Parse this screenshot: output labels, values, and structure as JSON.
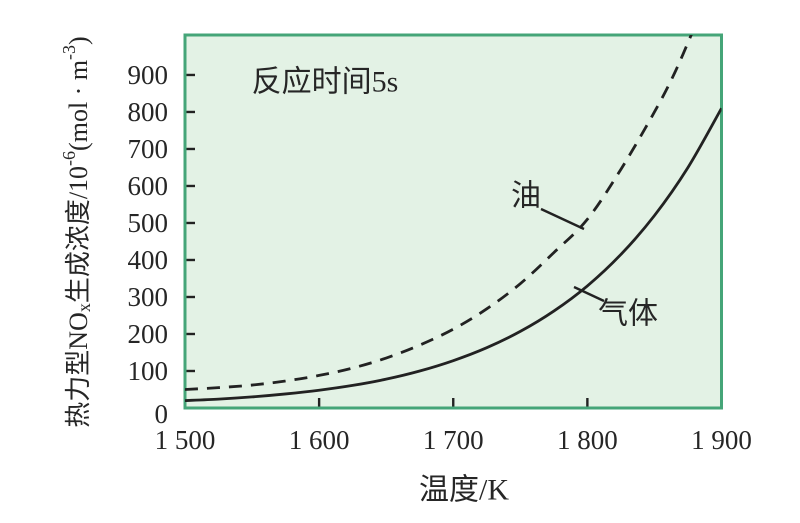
{
  "figure": {
    "page_bg": "#ffffff"
  },
  "chart_data": {
    "type": "line",
    "title": "",
    "annotation": "反应时间5s",
    "xlabel": "温度/K",
    "ylabel": "热力型NOx生成浓度/10-6(mol·m-3)",
    "ylabel_segments": [
      {
        "text": "热力型NO",
        "script": "normal"
      },
      {
        "text": "x",
        "script": "sub"
      },
      {
        "text": "生成浓度/10",
        "script": "normal"
      },
      {
        "text": "-6",
        "script": "sup"
      },
      {
        "text": "(mol · m",
        "script": "normal"
      },
      {
        "text": "-3",
        "script": "sup"
      },
      {
        "text": ")",
        "script": "normal"
      }
    ],
    "xlim": [
      1500,
      1900
    ],
    "ylim": [
      0,
      1008
    ],
    "grid": false,
    "legend_position": "inline-labels-with-leader-lines",
    "x_tick_values": [
      1500,
      1600,
      1700,
      1800,
      1900
    ],
    "x_tick_labels": [
      "1 500",
      "1 600",
      "1 700",
      "1 800",
      "1 900"
    ],
    "x_tick_marks": [
      1600,
      1700,
      1800
    ],
    "y_tick_values": [
      0,
      100,
      200,
      300,
      400,
      500,
      600,
      700,
      800,
      900
    ],
    "y_tick_labels": [
      "0",
      "100",
      "200",
      "300",
      "400",
      "500",
      "600",
      "700",
      "800",
      "900"
    ],
    "y_tick_marks": [
      100,
      200,
      300,
      400,
      500,
      600,
      700,
      800,
      900
    ],
    "colors": {
      "plot_bg": "#e3f2e5",
      "plot_border": "#45a578",
      "curve": "#222222",
      "text": "#262626",
      "tick": "#222222",
      "page_bg": "#ffffff"
    },
    "series": [
      {
        "name": "油",
        "line_style": "dashed",
        "x": [
          1500,
          1525,
          1550,
          1575,
          1600,
          1625,
          1650,
          1675,
          1700,
          1725,
          1750,
          1775,
          1800,
          1825,
          1850,
          1865,
          1880
        ],
        "y": [
          50,
          55,
          62,
          73,
          88,
          108,
          135,
          170,
          213,
          268,
          336,
          420,
          510,
          645,
          800,
          905,
          1030
        ]
      },
      {
        "name": "气体",
        "line_style": "solid",
        "x": [
          1500,
          1525,
          1550,
          1575,
          1600,
          1625,
          1650,
          1675,
          1700,
          1725,
          1750,
          1775,
          1800,
          1825,
          1850,
          1875,
          1900
        ],
        "y": [
          20,
          24,
          30,
          38,
          48,
          61,
          78,
          100,
          128,
          163,
          207,
          262,
          330,
          415,
          520,
          650,
          810
        ]
      }
    ]
  }
}
